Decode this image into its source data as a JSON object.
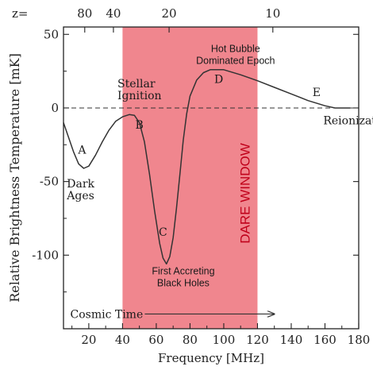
{
  "chart_data": {
    "type": "line",
    "xlabel": "Frequency [MHz]",
    "ylabel": "Relative Brightness Temperature [mK]",
    "xlim": [
      5,
      180
    ],
    "ylim": [
      -150,
      55
    ],
    "x_ticks": [
      20,
      40,
      60,
      80,
      100,
      120,
      140,
      160,
      180
    ],
    "y_ticks": [
      50,
      0,
      -50,
      -100
    ],
    "top_axis": {
      "prefix": "z=",
      "ticks": [
        {
          "label": "80",
          "freq": 17.6
        },
        {
          "label": "40",
          "freq": 34.6
        },
        {
          "label": "20",
          "freq": 67.6
        },
        {
          "label": "10",
          "freq": 129.1
        }
      ]
    },
    "zero_line": {
      "y": 0,
      "style": "dashed"
    },
    "band": {
      "label": "DARE WINDOW",
      "x_range": [
        40,
        120
      ],
      "color": "#ef7f88"
    },
    "series": [
      {
        "color": "#333333",
        "points": [
          [
            5,
            -10
          ],
          [
            8,
            -20
          ],
          [
            11,
            -30
          ],
          [
            14,
            -38
          ],
          [
            17,
            -41
          ],
          [
            20,
            -39.5
          ],
          [
            24,
            -32
          ],
          [
            28,
            -23
          ],
          [
            32,
            -15
          ],
          [
            36,
            -9
          ],
          [
            40,
            -6
          ],
          [
            44,
            -4.5
          ],
          [
            47,
            -5
          ],
          [
            50,
            -10
          ],
          [
            53,
            -23
          ],
          [
            56,
            -45
          ],
          [
            59,
            -70
          ],
          [
            62,
            -92
          ],
          [
            64,
            -102
          ],
          [
            66,
            -106
          ],
          [
            68,
            -101
          ],
          [
            70,
            -88
          ],
          [
            72,
            -68
          ],
          [
            74,
            -45
          ],
          [
            76,
            -22
          ],
          [
            78,
            -4
          ],
          [
            80,
            8
          ],
          [
            84,
            19
          ],
          [
            88,
            24
          ],
          [
            92,
            26
          ],
          [
            96,
            26
          ],
          [
            100,
            26
          ],
          [
            110,
            22.5
          ],
          [
            120,
            18.5
          ],
          [
            130,
            14
          ],
          [
            140,
            9.5
          ],
          [
            150,
            5
          ],
          [
            160,
            1.5
          ],
          [
            166,
            0
          ],
          [
            175,
            0
          ]
        ]
      }
    ],
    "point_labels": [
      {
        "text": "A",
        "x": 16,
        "y": -31
      },
      {
        "text": "B",
        "x": 50,
        "y": -14
      },
      {
        "text": "C",
        "x": 64,
        "y": -87
      },
      {
        "text": "D",
        "x": 97,
        "y": 17
      },
      {
        "text": "E",
        "x": 155,
        "y": 8
      }
    ],
    "annotations": [
      {
        "lines": [
          "Dark",
          "Ages"
        ],
        "x": 7,
        "y": -54
      },
      {
        "lines": [
          "Stellar",
          "Ignition"
        ],
        "x": 37,
        "y": 14
      },
      {
        "lines": [
          "First Accreting",
          "Black Holes"
        ],
        "x": 76,
        "y": -113
      },
      {
        "lines": [
          "Hot Bubble",
          "Dominated Epoch"
        ],
        "x": 107,
        "y": 38
      },
      {
        "lines": [
          "Reionization"
        ],
        "x": 159,
        "y": -11
      }
    ],
    "time_arrow": {
      "label": "Cosmic Time",
      "x_start": 40,
      "x_end": 130,
      "y": -140
    }
  }
}
